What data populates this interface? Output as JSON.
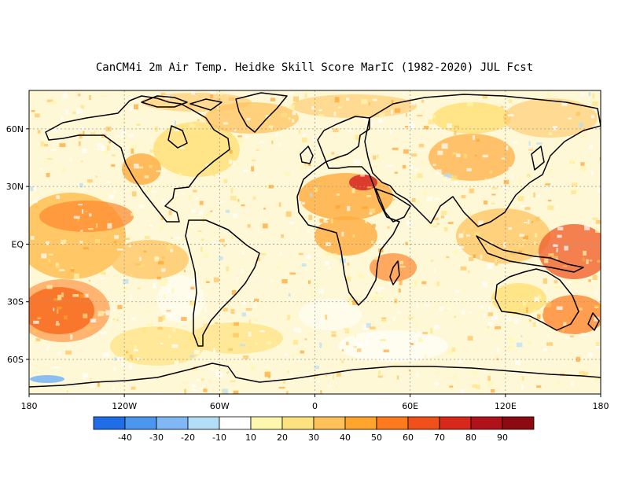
{
  "title": "CanCM4i 2m Air Temp. Heidke Skill Score MarIC (1982-2020) JUL Fcst",
  "map": {
    "lat_labels": [
      "60N",
      "30N",
      "EQ",
      "30S",
      "60S"
    ],
    "lat_values": [
      60,
      30,
      0,
      -30,
      -60
    ],
    "lon_labels": [
      "180",
      "120W",
      "60W",
      "0",
      "60E",
      "120E",
      "180"
    ],
    "lon_values": [
      -180,
      -120,
      -60,
      0,
      60,
      120,
      180
    ],
    "lat_range": [
      -78,
      80
    ],
    "lon_range": [
      -180,
      180
    ],
    "grid": "dotted",
    "background_color": "#fff8d6"
  },
  "colorbar": {
    "labels": [
      "-40",
      "-30",
      "-20",
      "-10",
      "10",
      "20",
      "30",
      "40",
      "50",
      "60",
      "70",
      "80",
      "90"
    ],
    "colors": [
      "#1f6ee8",
      "#4c96f0",
      "#7fb8f5",
      "#b3def8",
      "#ffffff",
      "#fff6b0",
      "#ffe280",
      "#ffc25a",
      "#ffa42c",
      "#ff7a1c",
      "#f0501a",
      "#d8281c",
      "#b0121a",
      "#8c0a10"
    ]
  }
}
